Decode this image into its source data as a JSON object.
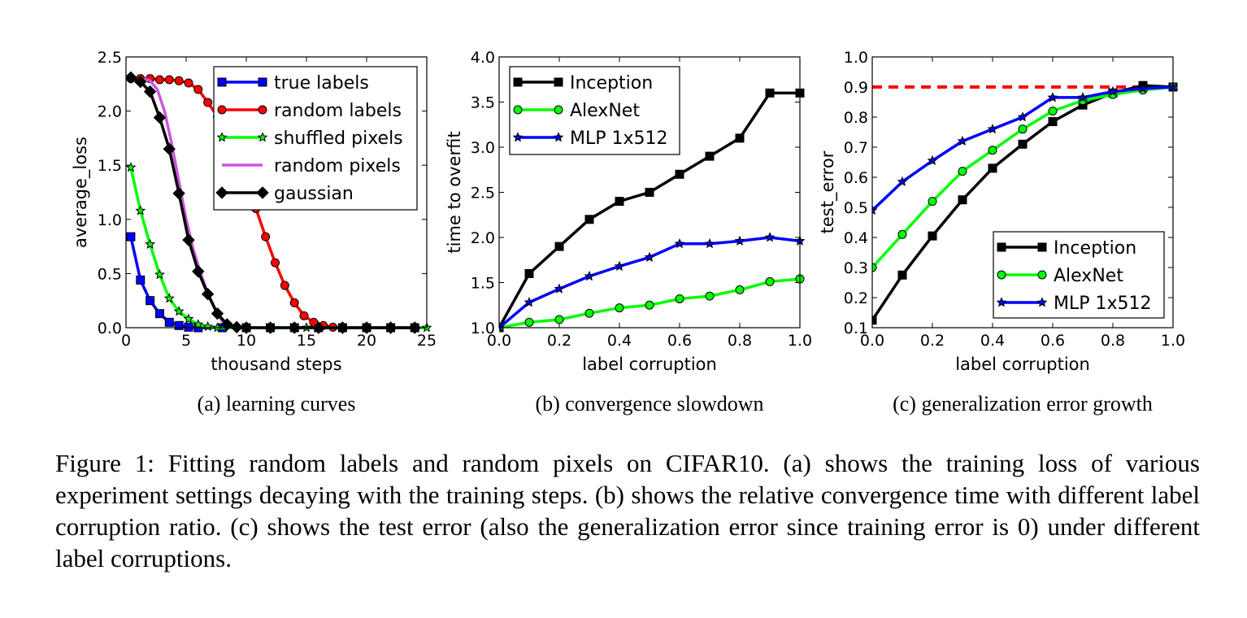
{
  "chart_data": [
    {
      "type": "line",
      "subcaption": "(a) learning curves",
      "xlabel": "thousand steps",
      "ylabel": "average_loss",
      "xlim": [
        0,
        25
      ],
      "ylim": [
        0.0,
        2.5
      ],
      "xticks": [
        "0",
        "5",
        "10",
        "15",
        "20",
        "25"
      ],
      "yticks": [
        "0.0",
        "0.5",
        "1.0",
        "1.5",
        "2.0",
        "2.5"
      ],
      "legend_position": "top-right",
      "series": [
        {
          "name": "true labels",
          "color": "#0000ff",
          "marker": "square",
          "line": "solid",
          "points": [
            [
              0.4,
              0.84
            ],
            [
              1.2,
              0.44
            ],
            [
              2,
              0.25
            ],
            [
              2.8,
              0.13
            ],
            [
              3.6,
              0.05
            ],
            [
              4.4,
              0.02
            ],
            [
              5.2,
              0.005
            ],
            [
              6,
              0
            ],
            [
              8,
              0
            ],
            [
              10,
              0
            ],
            [
              12,
              0
            ],
            [
              14,
              0
            ],
            [
              16,
              0
            ],
            [
              18,
              0
            ],
            [
              20,
              0
            ],
            [
              22,
              0
            ],
            [
              24,
              0
            ]
          ]
        },
        {
          "name": "random labels",
          "color": "#ff0000",
          "marker": "circle",
          "line": "solid",
          "points": [
            [
              0.4,
              2.3
            ],
            [
              1.2,
              2.3
            ],
            [
              2,
              2.3
            ],
            [
              2.8,
              2.29
            ],
            [
              3.6,
              2.29
            ],
            [
              4.4,
              2.28
            ],
            [
              5.2,
              2.26
            ],
            [
              6,
              2.2
            ],
            [
              6.8,
              2.08
            ],
            [
              7.6,
              1.95
            ],
            [
              8.4,
              1.78
            ],
            [
              9.2,
              1.58
            ],
            [
              10,
              1.35
            ],
            [
              10.8,
              1.1
            ],
            [
              11.6,
              0.84
            ],
            [
              12.4,
              0.6
            ],
            [
              13.2,
              0.39
            ],
            [
              14,
              0.23
            ],
            [
              14.8,
              0.11
            ],
            [
              15.6,
              0.05
            ],
            [
              16.4,
              0.02
            ],
            [
              17.2,
              0.005
            ],
            [
              18,
              0
            ],
            [
              20,
              0
            ],
            [
              22,
              0
            ],
            [
              24,
              0
            ]
          ]
        },
        {
          "name": "shuffled pixels",
          "color": "#00ff00",
          "marker": "star",
          "line": "solid",
          "points": [
            [
              0.4,
              1.48
            ],
            [
              1.2,
              1.08
            ],
            [
              2,
              0.77
            ],
            [
              2.8,
              0.49
            ],
            [
              3.6,
              0.27
            ],
            [
              4.4,
              0.15
            ],
            [
              5.2,
              0.08
            ],
            [
              6,
              0.03
            ],
            [
              6.8,
              0.01
            ],
            [
              7.6,
              0
            ],
            [
              10,
              0
            ],
            [
              15,
              0
            ],
            [
              20,
              0
            ],
            [
              25,
              0
            ]
          ]
        },
        {
          "name": "random pixels",
          "color": "#cc55dd",
          "marker": "none",
          "line": "solid",
          "points": [
            [
              1.5,
              2.3
            ],
            [
              2,
              2.28
            ],
            [
              2.6,
              2.2
            ],
            [
              3.2,
              2.0
            ],
            [
              3.8,
              1.7
            ],
            [
              4.4,
              1.35
            ],
            [
              5,
              1.0
            ],
            [
              5.6,
              0.72
            ],
            [
              6.2,
              0.5
            ],
            [
              6.8,
              0.32
            ],
            [
              7.4,
              0.17
            ],
            [
              8,
              0.06
            ],
            [
              8.6,
              0.01
            ],
            [
              9,
              0
            ]
          ]
        },
        {
          "name": "gaussian",
          "color": "#000000",
          "marker": "diamond",
          "line": "solid",
          "points": [
            [
              0.4,
              2.31
            ],
            [
              1.2,
              2.27
            ],
            [
              2,
              2.18
            ],
            [
              2.8,
              1.94
            ],
            [
              3.6,
              1.65
            ],
            [
              4.4,
              1.24
            ],
            [
              5.2,
              0.81
            ],
            [
              6,
              0.52
            ],
            [
              6.8,
              0.31
            ],
            [
              7.6,
              0.13
            ],
            [
              8.4,
              0.03
            ],
            [
              9.2,
              0.005
            ],
            [
              10,
              0
            ],
            [
              12,
              0
            ],
            [
              14,
              0
            ],
            [
              16,
              0
            ],
            [
              18,
              0
            ],
            [
              20,
              0
            ],
            [
              22,
              0
            ],
            [
              24,
              0
            ]
          ]
        }
      ]
    },
    {
      "type": "line",
      "subcaption": "(b) convergence slowdown",
      "xlabel": "label corruption",
      "ylabel": "time to overfit",
      "xlim": [
        0.0,
        1.0
      ],
      "ylim": [
        1.0,
        4.0
      ],
      "xticks": [
        "0.0",
        "0.2",
        "0.4",
        "0.6",
        "0.8",
        "1.0"
      ],
      "yticks": [
        "1.0",
        "1.5",
        "2.0",
        "2.5",
        "3.0",
        "3.5",
        "4.0"
      ],
      "legend_position": "top-left",
      "series": [
        {
          "name": "Inception",
          "color": "#000000",
          "marker": "square",
          "x": [
            0.0,
            0.1,
            0.2,
            0.3,
            0.4,
            0.5,
            0.6,
            0.7,
            0.8,
            0.9,
            1.0
          ],
          "y": [
            1.0,
            1.6,
            1.9,
            2.2,
            2.4,
            2.5,
            2.7,
            2.9,
            3.1,
            3.6,
            3.6
          ]
        },
        {
          "name": "AlexNet",
          "color": "#00ff00",
          "marker": "circle",
          "x": [
            0.0,
            0.1,
            0.2,
            0.3,
            0.4,
            0.5,
            0.6,
            0.7,
            0.8,
            0.9,
            1.0
          ],
          "y": [
            1.0,
            1.06,
            1.09,
            1.16,
            1.22,
            1.25,
            1.32,
            1.35,
            1.42,
            1.51,
            1.54
          ]
        },
        {
          "name": "MLP 1x512",
          "color": "#0000ff",
          "marker": "star",
          "x": [
            0.0,
            0.1,
            0.2,
            0.3,
            0.4,
            0.5,
            0.6,
            0.7,
            0.8,
            0.9,
            1.0
          ],
          "y": [
            1.0,
            1.28,
            1.43,
            1.57,
            1.68,
            1.78,
            1.93,
            1.93,
            1.96,
            2.0,
            1.96
          ]
        }
      ]
    },
    {
      "type": "line",
      "subcaption": "(c) generalization error growth",
      "xlabel": "label corruption",
      "ylabel": "test_error",
      "xlim": [
        0.0,
        1.0
      ],
      "ylim": [
        0.1,
        1.0
      ],
      "xticks": [
        "0.0",
        "0.2",
        "0.4",
        "0.6",
        "0.8",
        "1.0"
      ],
      "yticks": [
        "0.1",
        "0.2",
        "0.3",
        "0.4",
        "0.5",
        "0.6",
        "0.7",
        "0.8",
        "0.9",
        "1.0"
      ],
      "legend_position": "bottom-right",
      "reference_line": {
        "y": 0.9,
        "color": "#ff0000",
        "style": "dashed"
      },
      "series": [
        {
          "name": "Inception",
          "color": "#000000",
          "marker": "square",
          "x": [
            0.0,
            0.1,
            0.2,
            0.3,
            0.4,
            0.5,
            0.6,
            0.7,
            0.8,
            0.9,
            1.0
          ],
          "y": [
            0.125,
            0.275,
            0.405,
            0.525,
            0.63,
            0.71,
            0.785,
            0.84,
            0.88,
            0.905,
            0.9
          ]
        },
        {
          "name": "AlexNet",
          "color": "#00ff00",
          "marker": "circle",
          "x": [
            0.0,
            0.1,
            0.2,
            0.3,
            0.4,
            0.5,
            0.6,
            0.7,
            0.8,
            0.9,
            1.0
          ],
          "y": [
            0.3,
            0.41,
            0.52,
            0.62,
            0.69,
            0.76,
            0.82,
            0.855,
            0.875,
            0.89,
            0.9
          ]
        },
        {
          "name": "MLP 1x512",
          "color": "#0000ff",
          "marker": "star",
          "x": [
            0.0,
            0.1,
            0.2,
            0.3,
            0.4,
            0.5,
            0.6,
            0.7,
            0.8,
            0.9,
            1.0
          ],
          "y": [
            0.49,
            0.585,
            0.655,
            0.72,
            0.76,
            0.8,
            0.865,
            0.865,
            0.885,
            0.895,
            0.9
          ]
        }
      ]
    }
  ],
  "caption": "Figure 1: Fitting random labels and random pixels on CIFAR10. (a) shows the training loss of various experiment settings decaying with the training steps. (b) shows the relative convergence time with different label corruption ratio. (c) shows the test error (also the generalization error since training error is 0) under different label corruptions."
}
